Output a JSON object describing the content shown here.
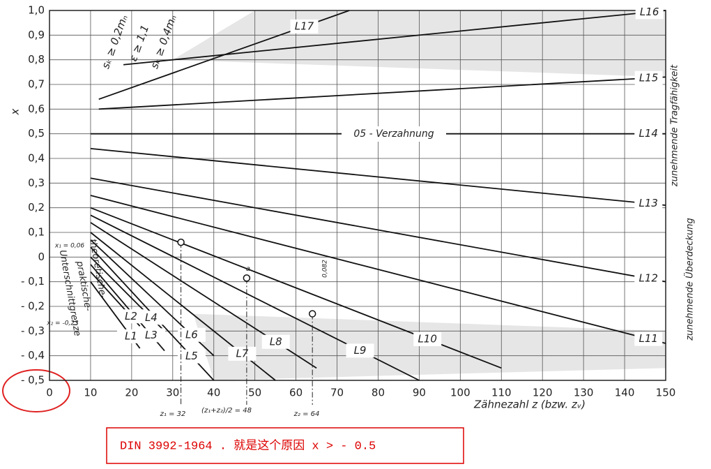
{
  "chart_data": {
    "type": "line",
    "xlabel": "Zähnezahl z (bzw. zᵥ)",
    "ylabel": "x",
    "xlim": [
      0,
      150
    ],
    "ylim": [
      -0.5,
      1.0
    ],
    "xticks": [
      0,
      10,
      20,
      30,
      40,
      50,
      60,
      70,
      80,
      90,
      100,
      110,
      120,
      130,
      140,
      150
    ],
    "yticks": [
      {
        "value": 1.0,
        "label": "1,0"
      },
      {
        "value": 0.9,
        "label": "0,9"
      },
      {
        "value": 0.8,
        "label": "0,8"
      },
      {
        "value": 0.7,
        "label": "0,7"
      },
      {
        "value": 0.6,
        "label": "0,6"
      },
      {
        "value": 0.5,
        "label": "0,5"
      },
      {
        "value": 0.4,
        "label": "0,4"
      },
      {
        "value": 0.3,
        "label": "0,3"
      },
      {
        "value": 0.2,
        "label": "0,2"
      },
      {
        "value": 0.1,
        "label": "0,1"
      },
      0,
      {
        "value": -0.1,
        "label": "- 0,1"
      },
      {
        "value": -0.2,
        "label": "- 0,2"
      },
      {
        "value": -0.3,
        "label": "- 0,3"
      },
      {
        "value": -0.4,
        "label": "- 0,4"
      },
      {
        "value": -0.5,
        "label": "- 0,5"
      }
    ],
    "grid": true,
    "series": [
      {
        "name": "L17",
        "x": [
          12,
          73
        ],
        "values": [
          0.64,
          1.0
        ]
      },
      {
        "name": "L16",
        "x": [
          18,
          150
        ],
        "values": [
          0.78,
          1.0
        ]
      },
      {
        "name": "L15",
        "x": [
          12,
          150
        ],
        "values": [
          0.6,
          0.73
        ]
      },
      {
        "name": "L14",
        "x": [
          10,
          150
        ],
        "values": [
          0.5,
          0.5
        ]
      },
      {
        "name": "L13",
        "x": [
          10,
          150
        ],
        "values": [
          0.44,
          0.21
        ]
      },
      {
        "name": "L12",
        "x": [
          10,
          150
        ],
        "values": [
          0.32,
          -0.1
        ]
      },
      {
        "name": "L11",
        "x": [
          10,
          150
        ],
        "values": [
          0.25,
          -0.35
        ]
      },
      {
        "name": "L10",
        "x": [
          10,
          110
        ],
        "values": [
          0.2,
          -0.45
        ]
      },
      {
        "name": "L9",
        "x": [
          10,
          90
        ],
        "values": [
          0.17,
          -0.5
        ]
      },
      {
        "name": "L8",
        "x": [
          10,
          65
        ],
        "values": [
          0.14,
          -0.45
        ]
      },
      {
        "name": "L7",
        "x": [
          10,
          55
        ],
        "values": [
          0.1,
          -0.5
        ]
      },
      {
        "name": "L6",
        "x": [
          10,
          40
        ],
        "values": [
          0.07,
          -0.4
        ]
      },
      {
        "name": "L5",
        "x": [
          10,
          40
        ],
        "values": [
          0.04,
          -0.5
        ]
      },
      {
        "name": "L4",
        "x": [
          10,
          28
        ],
        "values": [
          0.0,
          -0.3
        ]
      },
      {
        "name": "L3",
        "x": [
          10,
          28
        ],
        "values": [
          -0.03,
          -0.38
        ]
      },
      {
        "name": "L2",
        "x": [
          10,
          22
        ],
        "values": [
          -0.06,
          -0.28
        ]
      },
      {
        "name": "L1",
        "x": [
          10,
          22
        ],
        "values": [
          -0.1,
          -0.37
        ]
      }
    ],
    "operating_points": {
      "x": [
        32,
        48,
        64
      ],
      "values": [
        0.06,
        -0.085,
        -0.23
      ]
    },
    "annotations": [
      "05 - Verzahnung",
      "zunehmende Tragfähigkeit",
      "zunehmende Überdeckung",
      "theoretische-",
      "praktische-",
      "Unterschnittgrenze",
      "x₁ = 0,06",
      "x₂ = -0,23",
      "z₁ = 32",
      "(z₁+z₂)/2 = 48",
      "z₂ = 64",
      "0,082",
      "a",
      "sₖ ≥ 0,2mₙ",
      "ε ≥ 1,1",
      "sₖ ≥ 0,4mₙ"
    ]
  },
  "caption": "DIN 3992-1964 . 就是这个原因   x > - 0.5"
}
